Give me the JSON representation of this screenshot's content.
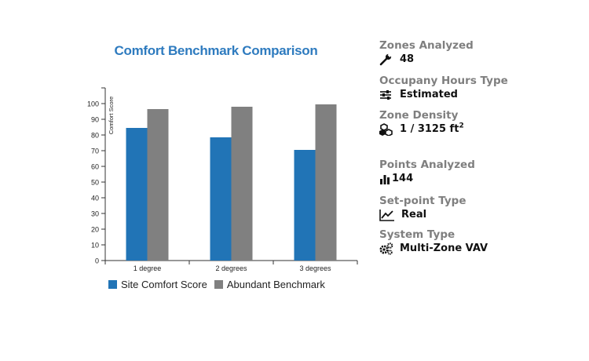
{
  "chart_data": {
    "type": "bar",
    "title": "Comfort Benchmark Comparison",
    "xlabel": "",
    "ylabel": "Comfort Score",
    "ylim": [
      0,
      110
    ],
    "yticks": [
      0,
      10,
      20,
      30,
      40,
      50,
      60,
      70,
      80,
      90,
      100
    ],
    "grid": false,
    "legend_position": "bottom-left",
    "categories": [
      "1 degree",
      "2 degrees",
      "3 degrees"
    ],
    "series": [
      {
        "name": "Site Comfort Score",
        "color": "#2174b6",
        "values": [
          84.5,
          78.5,
          70.5
        ]
      },
      {
        "name": "Abundant Benchmark",
        "color": "#808080",
        "values": [
          96.5,
          98,
          99.5
        ]
      }
    ]
  },
  "info": [
    {
      "label": "Zones Analyzed",
      "value": "48",
      "icon": "wrench-icon"
    },
    {
      "label": "Occupany Hours Type",
      "value": "Estimated",
      "icon": "sliders-icon"
    },
    {
      "label": "Zone Density",
      "value": "1 / 3125 ft",
      "value_sup": "2",
      "icon": "cubes-icon"
    },
    {
      "label": "Points Analyzed",
      "value": "144",
      "icon": "bar-chart-icon"
    },
    {
      "label": "Set-point Type",
      "value": "Real",
      "icon": "line-chart-icon"
    },
    {
      "label": "System Type",
      "value": "Multi-Zone VAV",
      "icon": "gears-icon"
    }
  ]
}
